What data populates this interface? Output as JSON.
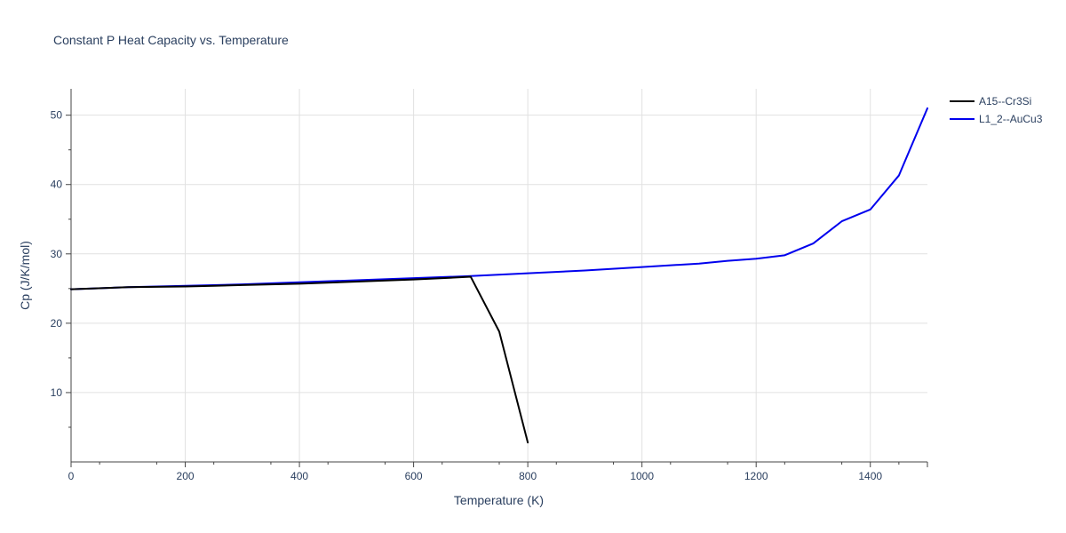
{
  "chart_data": {
    "type": "line",
    "title": "Constant P Heat Capacity vs. Temperature",
    "xlabel": "Temperature (K)",
    "ylabel": "Cp (J/K/mol)",
    "xlim": [
      0,
      1500
    ],
    "ylim": [
      0,
      53.8
    ],
    "x_ticks": [
      0,
      200,
      400,
      600,
      800,
      1000,
      1200,
      1400
    ],
    "y_ticks": [
      10,
      20,
      30,
      40,
      50
    ],
    "grid": true,
    "legend_position": "top-right",
    "series": [
      {
        "name": "A15--Cr3Si",
        "color": "#000000",
        "x": [
          0,
          100,
          200,
          250,
          300,
          400,
          500,
          600,
          700,
          750,
          800
        ],
        "y": [
          24.9,
          25.2,
          25.3,
          25.4,
          25.5,
          25.7,
          26.0,
          26.3,
          26.7,
          18.8,
          2.8
        ]
      },
      {
        "name": "L1_2--AuCu3",
        "color": "#0000ee",
        "x": [
          0,
          100,
          200,
          300,
          400,
          500,
          600,
          700,
          800,
          900,
          1000,
          1100,
          1150,
          1200,
          1250,
          1300,
          1350,
          1400,
          1450,
          1500
        ],
        "y": [
          24.9,
          25.2,
          25.4,
          25.6,
          25.9,
          26.2,
          26.5,
          26.8,
          27.2,
          27.6,
          28.1,
          28.6,
          29.0,
          29.3,
          29.8,
          31.5,
          34.7,
          36.4,
          41.3,
          51.0
        ]
      }
    ]
  }
}
